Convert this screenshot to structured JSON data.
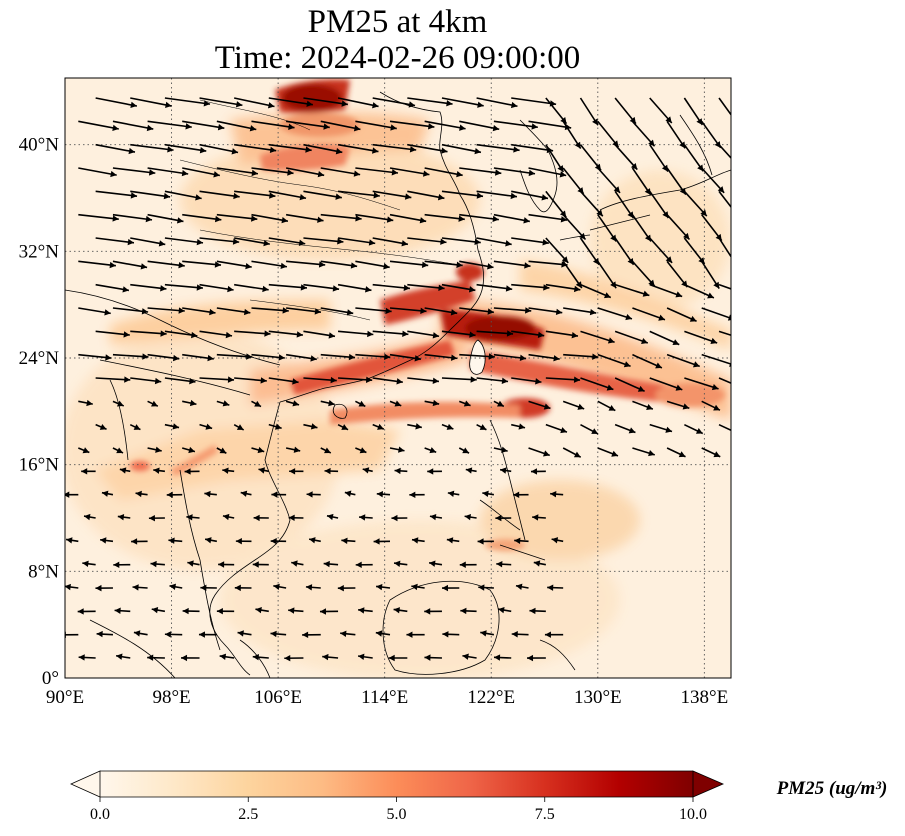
{
  "title": {
    "line1": "PM25 at 4km",
    "line2": "Time: 2024-02-26 09:00:00"
  },
  "map": {
    "region": "East and Southeast Asia",
    "lon_range": [
      90,
      140
    ],
    "lat_range": [
      0,
      45
    ],
    "lon_ticks": [
      90,
      98,
      106,
      114,
      122,
      130,
      138
    ],
    "lon_tick_labels": [
      "90°E",
      "98°E",
      "106°E",
      "114°E",
      "122°E",
      "130°E",
      "138°E"
    ],
    "lat_ticks": [
      0,
      8,
      16,
      24,
      32,
      40
    ],
    "lat_tick_labels": [
      "0°",
      "8°N",
      "16°N",
      "24°N",
      "32°N",
      "40°N"
    ],
    "gridlines": "dotted",
    "field": "PM25",
    "vectors": "wind arrows"
  },
  "colorbar": {
    "label": "PM25 (ug/m³)",
    "min": 0.0,
    "max": 10.0,
    "ticks": [
      0.0,
      2.5,
      5.0,
      7.5,
      10.0
    ],
    "tick_labels": [
      "0.0",
      "2.5",
      "5.0",
      "7.5",
      "10.0"
    ],
    "extend": "both",
    "colormap": "OrRd",
    "colors": [
      "#fff7ec",
      "#fee8c8",
      "#fdd49e",
      "#fdbb84",
      "#fc8d59",
      "#ef6548",
      "#d7301f",
      "#b30000",
      "#7f0000"
    ]
  }
}
